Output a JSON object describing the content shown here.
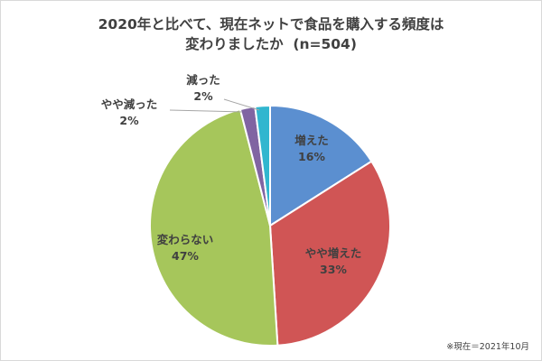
{
  "chart_data": {
    "type": "pie",
    "title": "2020年と比べて、現在ネットで食品を購入する頻度は",
    "title_line2": "変わりましたか",
    "title_n": "(n=504)",
    "slices": [
      {
        "label": "増えた",
        "value": 16,
        "value_label": "16%",
        "color": "#5b8fd0"
      },
      {
        "label": "やや増えた",
        "value": 33,
        "value_label": "33%",
        "color": "#d05555"
      },
      {
        "label": "変わらない",
        "value": 47,
        "value_label": "47%",
        "color": "#a6c65b"
      },
      {
        "label": "やや減った",
        "value": 2,
        "value_label": "2%",
        "color": "#8064a2"
      },
      {
        "label": "減った",
        "value": 2,
        "value_label": "2%",
        "color": "#31b6cf"
      }
    ],
    "start": "12 o'clock",
    "direction": "clockwise"
  },
  "footnote": "※現在＝2021年10月"
}
